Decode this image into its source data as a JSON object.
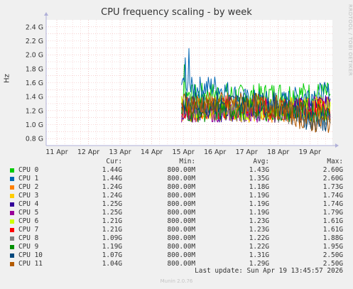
{
  "chart_data": {
    "type": "line",
    "title": "CPU frequency scaling - by week",
    "ylabel": "Hz",
    "ylim": [
      0.7,
      2.5
    ],
    "y_ticks": [
      "0.8 G",
      "1.0 G",
      "1.2 G",
      "1.4 G",
      "1.6 G",
      "1.8 G",
      "2.0 G",
      "2.2 G",
      "2.4 G"
    ],
    "y_tick_values": [
      0.8,
      1.0,
      1.2,
      1.4,
      1.6,
      1.8,
      2.0,
      2.2,
      2.4
    ],
    "x_ticks": [
      "11 Apr",
      "12 Apr",
      "13 Apr",
      "14 Apr",
      "15 Apr",
      "16 Apr",
      "17 Apr",
      "18 Apr",
      "19 Apr"
    ],
    "x": [
      "15 Apr",
      "16 Apr",
      "17 Apr",
      "18 Apr",
      "19 Apr"
    ],
    "series": [
      {
        "name": "CPU 0",
        "color": "#00cc00",
        "values": [
          1.4,
          1.45,
          1.4,
          1.45,
          1.44
        ]
      },
      {
        "name": "CPU 1",
        "color": "#0066b3",
        "values": [
          1.5,
          1.55,
          1.35,
          1.3,
          1.44
        ]
      },
      {
        "name": "CPU 2",
        "color": "#ff8000",
        "values": [
          1.2,
          1.25,
          1.2,
          1.2,
          1.24
        ]
      },
      {
        "name": "CPU 3",
        "color": "#ffcc00",
        "values": [
          1.2,
          1.2,
          1.2,
          1.2,
          1.24
        ]
      },
      {
        "name": "CPU 4",
        "color": "#330099",
        "values": [
          1.2,
          1.2,
          1.2,
          1.2,
          1.25
        ]
      },
      {
        "name": "CPU 5",
        "color": "#990099",
        "values": [
          1.2,
          1.2,
          1.2,
          1.2,
          1.25
        ]
      },
      {
        "name": "CPU 6",
        "color": "#ccff00",
        "values": [
          1.25,
          1.25,
          1.2,
          1.25,
          1.21
        ]
      },
      {
        "name": "CPU 7",
        "color": "#ff0000",
        "values": [
          1.25,
          1.25,
          1.25,
          1.2,
          1.21
        ]
      },
      {
        "name": "CPU 8",
        "color": "#808080",
        "values": [
          1.25,
          1.25,
          1.2,
          1.2,
          1.09
        ]
      },
      {
        "name": "CPU 9",
        "color": "#008f00",
        "values": [
          1.2,
          1.2,
          1.25,
          1.2,
          1.19
        ]
      },
      {
        "name": "CPU 10",
        "color": "#00487d",
        "values": [
          1.3,
          1.3,
          1.3,
          1.3,
          1.07
        ]
      },
      {
        "name": "CPU 11",
        "color": "#b35a00",
        "values": [
          1.3,
          1.3,
          1.3,
          1.25,
          1.04
        ]
      }
    ],
    "grid": true
  },
  "side_label": "RRDTOOL / TOBI OETIKER",
  "legend": {
    "headers": {
      "cur": "Cur:",
      "min": "Min:",
      "avg": "Avg:",
      "max": "Max:"
    },
    "rows": [
      {
        "name": "CPU 0",
        "color": "#00cc00",
        "cur": "1.44G",
        "min": "800.00M",
        "avg": "1.43G",
        "max": "2.60G"
      },
      {
        "name": "CPU 1",
        "color": "#0066b3",
        "cur": "1.44G",
        "min": "800.00M",
        "avg": "1.35G",
        "max": "2.60G"
      },
      {
        "name": "CPU 2",
        "color": "#ff8000",
        "cur": "1.24G",
        "min": "800.00M",
        "avg": "1.18G",
        "max": "1.73G"
      },
      {
        "name": "CPU 3",
        "color": "#ffcc00",
        "cur": "1.24G",
        "min": "800.00M",
        "avg": "1.19G",
        "max": "1.74G"
      },
      {
        "name": "CPU 4",
        "color": "#330099",
        "cur": "1.25G",
        "min": "800.00M",
        "avg": "1.19G",
        "max": "1.74G"
      },
      {
        "name": "CPU 5",
        "color": "#990099",
        "cur": "1.25G",
        "min": "800.00M",
        "avg": "1.19G",
        "max": "1.79G"
      },
      {
        "name": "CPU 6",
        "color": "#ccff00",
        "cur": "1.21G",
        "min": "800.00M",
        "avg": "1.23G",
        "max": "1.61G"
      },
      {
        "name": "CPU 7",
        "color": "#ff0000",
        "cur": "1.21G",
        "min": "800.00M",
        "avg": "1.23G",
        "max": "1.61G"
      },
      {
        "name": "CPU 8",
        "color": "#808080",
        "cur": "1.09G",
        "min": "800.00M",
        "avg": "1.22G",
        "max": "1.88G"
      },
      {
        "name": "CPU 9",
        "color": "#008f00",
        "cur": "1.19G",
        "min": "800.00M",
        "avg": "1.22G",
        "max": "1.95G"
      },
      {
        "name": "CPU 10",
        "color": "#00487d",
        "cur": "1.07G",
        "min": "800.00M",
        "avg": "1.31G",
        "max": "2.50G"
      },
      {
        "name": "CPU 11",
        "color": "#b35a00",
        "cur": "1.04G",
        "min": "800.00M",
        "avg": "1.29G",
        "max": "2.50G"
      }
    ]
  },
  "last_update": "Last update: Sun Apr 19 13:45:57 2026",
  "munin_version": "Munin 2.0.76"
}
